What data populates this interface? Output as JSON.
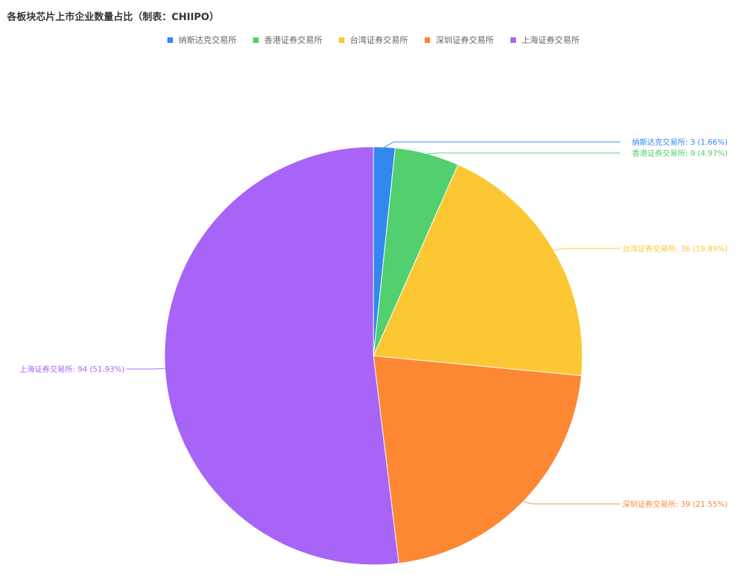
{
  "chart_data": {
    "type": "pie",
    "title": "各板块芯片上市企业数量占比（制表：CHIIPO）",
    "legend_position": "top-center",
    "slices": [
      {
        "name": "纳斯达克交易所",
        "value": 3,
        "percent": "1.66%",
        "color": "#3388f0"
      },
      {
        "name": "香港证券交易所",
        "value": 9,
        "percent": "4.97%",
        "color": "#52cf6f"
      },
      {
        "name": "台湾证券交易所",
        "value": 36,
        "percent": "19.89%",
        "color": "#fbc833"
      },
      {
        "name": "深圳证券交易所",
        "value": 39,
        "percent": "21.55%",
        "color": "#fd8733"
      },
      {
        "name": "上海证券交易所",
        "value": 94,
        "percent": "51.93%",
        "color": "#a864f7"
      }
    ]
  }
}
